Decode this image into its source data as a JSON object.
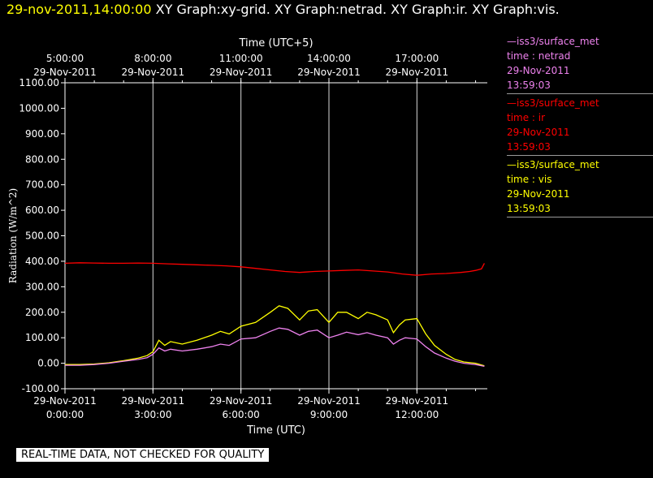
{
  "header": {
    "timestamp": "29-nov-2011,14:00:00",
    "graphs": "XY Graph:xy-grid.  XY Graph:netrad.  XY Graph:ir.  XY Graph:vis."
  },
  "note": "REAL-TIME DATA, NOT CHECKED FOR QUALITY",
  "colors": {
    "netrad": "#ee82ee",
    "ir": "#ff0000",
    "vis": "#ffff00",
    "grid": "#ffffff"
  },
  "legend": [
    {
      "key": "netrad",
      "line1": "—iss3/surface_met",
      "line2": "time : netrad",
      "line3": "29-Nov-2011",
      "line4": "13:59:03"
    },
    {
      "key": "ir",
      "line1": "—iss3/surface_met",
      "line2": "time : ir",
      "line3": "29-Nov-2011",
      "line4": "13:59:03"
    },
    {
      "key": "vis",
      "line1": "—iss3/surface_met",
      "line2": "time : vis",
      "line3": "29-Nov-2011",
      "line4": "13:59:03"
    }
  ],
  "chart_data": {
    "type": "line",
    "xlabel": "Time (UTC)",
    "xlabel_top": "Time (UTC+5)",
    "ylabel": "Radiation (W/m^2)",
    "xlim": [
      0,
      14.4
    ],
    "ylim": [
      -100,
      1100
    ],
    "grid": "vertical",
    "yticks": [
      "-100.00",
      "0.00",
      "100.00",
      "200.00",
      "300.00",
      "400.00",
      "500.00",
      "600.00",
      "700.00",
      "800.00",
      "900.00",
      "1000.00",
      "1100.00"
    ],
    "xticks_bottom": [
      {
        "x": 0,
        "date": "29-Nov-2011",
        "time": "0:00:00"
      },
      {
        "x": 3,
        "date": "29-Nov-2011",
        "time": "3:00:00"
      },
      {
        "x": 6,
        "date": "29-Nov-2011",
        "time": "6:00:00"
      },
      {
        "x": 9,
        "date": "29-Nov-2011",
        "time": "9:00:00"
      },
      {
        "x": 12,
        "date": "29-Nov-2011",
        "time": "12:00:00"
      }
    ],
    "xticks_top": [
      {
        "x": 0,
        "time": "5:00:00",
        "date": "29-Nov-2011"
      },
      {
        "x": 3,
        "time": "8:00:00",
        "date": "29-Nov-2011"
      },
      {
        "x": 6,
        "time": "11:00:00",
        "date": "29-Nov-2011"
      },
      {
        "x": 9,
        "time": "14:00:00",
        "date": "29-Nov-2011"
      },
      {
        "x": 12,
        "time": "17:00:00",
        "date": "29-Nov-2011"
      }
    ],
    "series": [
      {
        "name": "ir",
        "x": [
          0,
          0.5,
          1,
          1.5,
          2,
          2.5,
          3,
          3.5,
          4,
          4.5,
          5,
          5.5,
          6,
          6.5,
          7,
          7.5,
          8,
          8.5,
          9,
          9.5,
          10,
          10.5,
          11,
          11.5,
          12,
          12.5,
          13,
          13.5,
          13.8,
          14.0,
          14.2,
          14.3
        ],
        "values": [
          392,
          394,
          393,
          392,
          392,
          393,
          392,
          390,
          388,
          386,
          384,
          382,
          378,
          372,
          366,
          360,
          356,
          360,
          362,
          364,
          366,
          362,
          358,
          350,
          345,
          350,
          352,
          356,
          360,
          364,
          370,
          392
        ]
      },
      {
        "name": "vis",
        "x": [
          0,
          0.5,
          1,
          1.5,
          2,
          2.5,
          2.8,
          3,
          3.2,
          3.4,
          3.6,
          4,
          4.5,
          5,
          5.3,
          5.6,
          6,
          6.5,
          7,
          7.3,
          7.6,
          8,
          8.3,
          8.6,
          9,
          9.3,
          9.6,
          10,
          10.3,
          10.6,
          11,
          11.2,
          11.4,
          11.6,
          12,
          12.3,
          12.6,
          13,
          13.3,
          13.6,
          14,
          14.3
        ],
        "values": [
          -5,
          -5,
          -3,
          2,
          10,
          20,
          30,
          45,
          90,
          70,
          85,
          75,
          90,
          110,
          125,
          115,
          145,
          160,
          200,
          225,
          215,
          170,
          205,
          210,
          160,
          200,
          200,
          175,
          200,
          190,
          170,
          120,
          150,
          170,
          175,
          115,
          70,
          35,
          15,
          5,
          0,
          -10
        ]
      },
      {
        "name": "netrad",
        "x": [
          0,
          0.5,
          1,
          1.5,
          2,
          2.5,
          2.8,
          3,
          3.2,
          3.4,
          3.6,
          4,
          4.5,
          5,
          5.3,
          5.6,
          6,
          6.5,
          7,
          7.3,
          7.6,
          8,
          8.3,
          8.6,
          9,
          9.3,
          9.6,
          10,
          10.3,
          10.6,
          11,
          11.2,
          11.4,
          11.6,
          12,
          12.3,
          12.6,
          13,
          13.3,
          13.6,
          14,
          14.3
        ],
        "values": [
          -8,
          -8,
          -5,
          0,
          8,
          15,
          22,
          35,
          60,
          48,
          55,
          48,
          55,
          65,
          75,
          70,
          95,
          100,
          125,
          138,
          133,
          110,
          125,
          130,
          100,
          110,
          122,
          112,
          120,
          110,
          100,
          75,
          90,
          100,
          95,
          65,
          40,
          20,
          8,
          0,
          -5,
          -12
        ]
      }
    ]
  }
}
